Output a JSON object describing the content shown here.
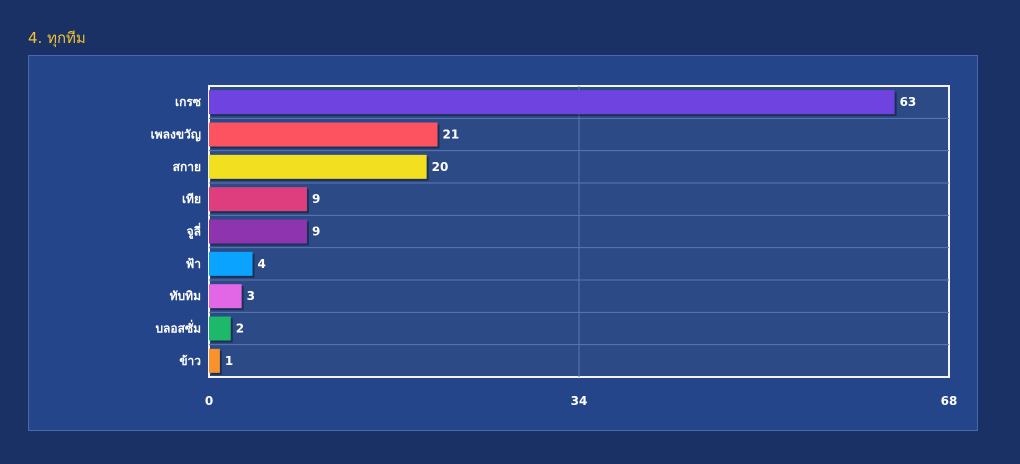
{
  "section": {
    "title": "4. ทุกทีม"
  },
  "chart_data": {
    "type": "bar",
    "orientation": "horizontal",
    "title": "",
    "xlabel": "",
    "ylabel": "",
    "xlim": [
      0,
      68
    ],
    "ticks": [
      "0",
      "34",
      "68"
    ],
    "grid": true,
    "categories": [
      "เกรซ",
      "เพลงขวัญ",
      "สกาย",
      "เทีย",
      "จูลี่",
      "ฟ้า",
      "ทับทิม",
      "บลอสซั่ม",
      "ข้าว"
    ],
    "values": [
      63,
      21,
      20,
      9,
      9,
      4,
      3,
      2,
      1
    ],
    "colors": [
      "#6f43e0",
      "#fd5360",
      "#f2e020",
      "#df3e7e",
      "#8e34ae",
      "#0aa3ff",
      "#e267e6",
      "#1db86a",
      "#f9922b"
    ]
  }
}
